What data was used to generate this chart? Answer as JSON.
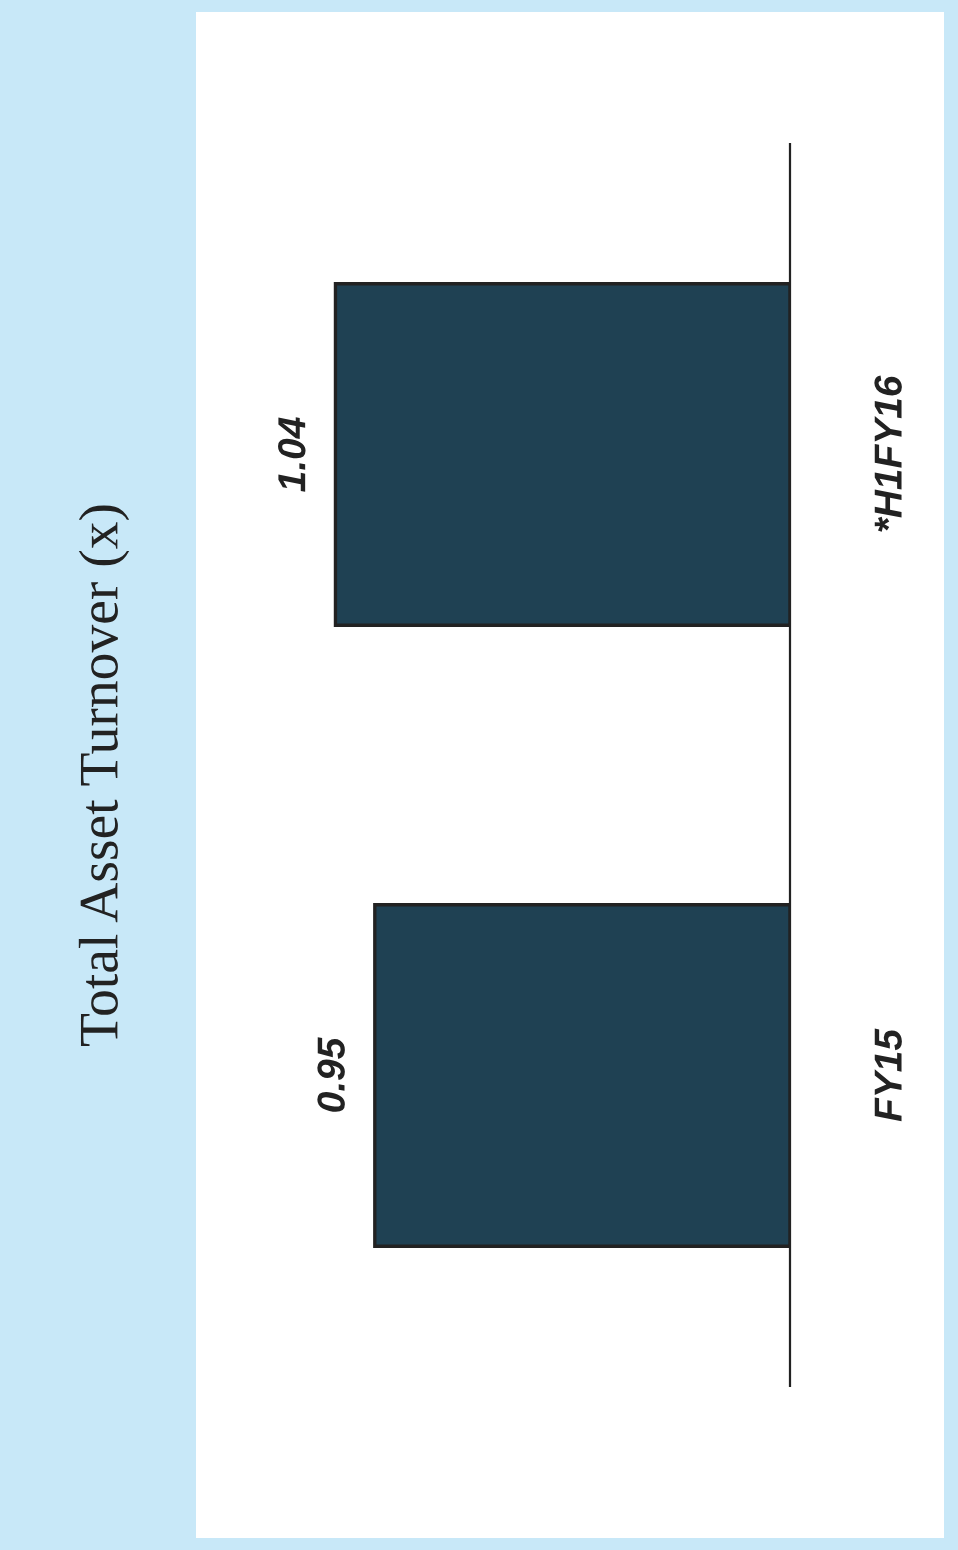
{
  "chart_data": {
    "type": "bar",
    "orientation": "horizontal",
    "title": "Total Asset Turnover (x)",
    "categories": [
      "*H1FY16",
      "FY15"
    ],
    "values": [
      1.04,
      0.95
    ],
    "color": "#1f4153",
    "data_labels": true,
    "grid": false,
    "legend": false
  }
}
